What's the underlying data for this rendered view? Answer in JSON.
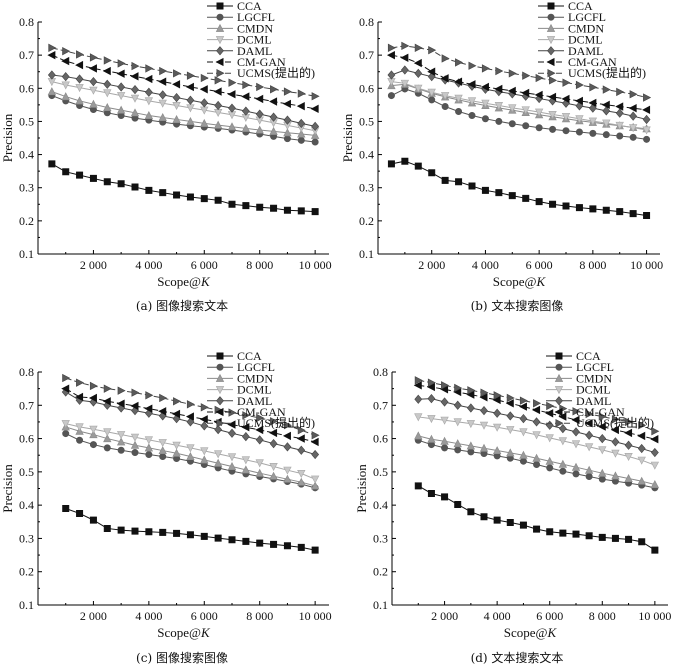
{
  "figure": {
    "captions": [
      "(a) 图像搜索文本",
      "(b) 文本搜索图像",
      "(c) 图像搜索图像",
      "(d) 文本搜索文本"
    ]
  },
  "chart_data": [
    {
      "type": "line",
      "title": "",
      "caption": "(a) 图像搜索文本",
      "xlabel_main": "Scope@",
      "xlabel_italic": "K",
      "ylabel": "Precision",
      "xlim": [
        0,
        10500
      ],
      "ylim": [
        0.1,
        0.8
      ],
      "xticks": [
        2000,
        4000,
        6000,
        8000,
        10000
      ],
      "xtick_labels": [
        "2 000",
        "4 000",
        "6 000",
        "8 000",
        "10 000"
      ],
      "yticks": [
        0.1,
        0.2,
        0.3,
        0.4,
        0.5,
        0.6,
        0.7,
        0.8
      ],
      "ytick_labels": [
        "0.1",
        "0.2",
        "0.3",
        "0.4",
        "0.5",
        "0.6",
        "0.7",
        "0.8"
      ],
      "legend_position": "top-right",
      "x": [
        500,
        1000,
        1500,
        2000,
        2500,
        3000,
        3500,
        4000,
        4500,
        5000,
        5500,
        6000,
        6500,
        7000,
        7500,
        8000,
        8500,
        9000,
        9500,
        10000
      ],
      "series": [
        {
          "name": "CCA",
          "marker": "square",
          "values": [
            0.372,
            0.348,
            0.338,
            0.328,
            0.318,
            0.312,
            0.302,
            0.292,
            0.285,
            0.278,
            0.272,
            0.267,
            0.262,
            0.25,
            0.246,
            0.241,
            0.238,
            0.232,
            0.23,
            0.228
          ]
        },
        {
          "name": "LGCFL",
          "marker": "circle",
          "values": [
            0.578,
            0.562,
            0.548,
            0.536,
            0.526,
            0.518,
            0.51,
            0.504,
            0.498,
            0.492,
            0.487,
            0.483,
            0.479,
            0.474,
            0.468,
            0.462,
            0.455,
            0.448,
            0.443,
            0.438
          ]
        },
        {
          "name": "CMDN",
          "marker": "triangle-up",
          "values": [
            0.59,
            0.575,
            0.562,
            0.552,
            0.542,
            0.534,
            0.526,
            0.518,
            0.512,
            0.506,
            0.5,
            0.494,
            0.489,
            0.484,
            0.479,
            0.474,
            0.47,
            0.466,
            0.462,
            0.458
          ]
        },
        {
          "name": "DCML",
          "marker": "triangle-down",
          "values": [
            0.62,
            0.61,
            0.602,
            0.594,
            0.586,
            0.578,
            0.57,
            0.562,
            0.555,
            0.548,
            0.541,
            0.534,
            0.527,
            0.52,
            0.512,
            0.504,
            0.496,
            0.488,
            0.48,
            0.472
          ]
        },
        {
          "name": "DAML",
          "marker": "diamond",
          "values": [
            0.64,
            0.635,
            0.628,
            0.62,
            0.612,
            0.604,
            0.596,
            0.588,
            0.58,
            0.572,
            0.564,
            0.556,
            0.548,
            0.54,
            0.531,
            0.522,
            0.513,
            0.504,
            0.494,
            0.485
          ]
        },
        {
          "name": "CM-GAN",
          "marker": "triangle-left",
          "values": [
            0.7,
            0.682,
            0.67,
            0.66,
            0.652,
            0.644,
            0.636,
            0.628,
            0.62,
            0.612,
            0.604,
            0.597,
            0.59,
            0.582,
            0.575,
            0.568,
            0.56,
            0.553,
            0.546,
            0.538
          ]
        },
        {
          "name": "UCMS(提出的)",
          "marker": "triangle-right",
          "values": [
            0.722,
            0.712,
            0.702,
            0.693,
            0.684,
            0.675,
            0.667,
            0.66,
            0.652,
            0.645,
            0.638,
            0.631,
            0.624,
            0.617,
            0.61,
            0.604,
            0.597,
            0.59,
            0.584,
            0.576
          ]
        }
      ]
    },
    {
      "type": "line",
      "title": "",
      "caption": "(b) 文本搜索图像",
      "xlabel_main": "Scope@",
      "xlabel_italic": "K",
      "ylabel": "Precision",
      "xlim": [
        0,
        10500
      ],
      "ylim": [
        0.1,
        0.8
      ],
      "xticks": [
        2000,
        4000,
        6000,
        8000,
        10000
      ],
      "xtick_labels": [
        "2 000",
        "4 000",
        "6 000",
        "8 000",
        "10 000"
      ],
      "yticks": [
        0.1,
        0.2,
        0.3,
        0.4,
        0.5,
        0.6,
        0.7,
        0.8
      ],
      "ytick_labels": [
        "0.1",
        "0.2",
        "0.3",
        "0.4",
        "0.5",
        "0.6",
        "0.7",
        "0.8"
      ],
      "legend_position": "top-right",
      "x": [
        500,
        1000,
        1500,
        2000,
        2500,
        3000,
        3500,
        4000,
        4500,
        5000,
        5500,
        6000,
        6500,
        7000,
        7500,
        8000,
        8500,
        9000,
        9500,
        10000
      ],
      "series": [
        {
          "name": "CCA",
          "marker": "square",
          "values": [
            0.372,
            0.38,
            0.365,
            0.345,
            0.322,
            0.318,
            0.305,
            0.292,
            0.285,
            0.276,
            0.268,
            0.258,
            0.25,
            0.245,
            0.24,
            0.236,
            0.232,
            0.228,
            0.222,
            0.216
          ]
        },
        {
          "name": "LGCFL",
          "marker": "circle",
          "values": [
            0.578,
            0.598,
            0.585,
            0.565,
            0.545,
            0.53,
            0.518,
            0.508,
            0.5,
            0.493,
            0.487,
            0.481,
            0.476,
            0.472,
            0.468,
            0.464,
            0.46,
            0.456,
            0.452,
            0.446
          ]
        },
        {
          "name": "CMDN",
          "marker": "triangle-up",
          "values": [
            0.608,
            0.612,
            0.598,
            0.585,
            0.574,
            0.565,
            0.556,
            0.548,
            0.541,
            0.534,
            0.527,
            0.52,
            0.514,
            0.508,
            0.502,
            0.497,
            0.492,
            0.487,
            0.482,
            0.478
          ]
        },
        {
          "name": "DCML",
          "marker": "triangle-down",
          "values": [
            0.62,
            0.615,
            0.6,
            0.588,
            0.578,
            0.57,
            0.562,
            0.555,
            0.548,
            0.541,
            0.535,
            0.528,
            0.521,
            0.515,
            0.508,
            0.501,
            0.495,
            0.488,
            0.481,
            0.474
          ]
        },
        {
          "name": "DAML",
          "marker": "diamond",
          "values": [
            0.64,
            0.655,
            0.645,
            0.635,
            0.625,
            0.616,
            0.606,
            0.597,
            0.59,
            0.583,
            0.576,
            0.569,
            0.562,
            0.555,
            0.547,
            0.54,
            0.532,
            0.525,
            0.516,
            0.506
          ]
        },
        {
          "name": "CM-GAN",
          "marker": "triangle-left",
          "values": [
            0.7,
            0.692,
            0.676,
            0.65,
            0.63,
            0.62,
            0.612,
            0.604,
            0.598,
            0.592,
            0.586,
            0.58,
            0.574,
            0.568,
            0.562,
            0.556,
            0.55,
            0.545,
            0.54,
            0.535
          ]
        },
        {
          "name": "UCMS(提出的)",
          "marker": "triangle-right",
          "values": [
            0.722,
            0.728,
            0.722,
            0.715,
            0.69,
            0.678,
            0.668,
            0.66,
            0.652,
            0.645,
            0.638,
            0.631,
            0.624,
            0.617,
            0.61,
            0.603,
            0.596,
            0.589,
            0.582,
            0.572
          ]
        }
      ]
    },
    {
      "type": "line",
      "title": "",
      "caption": "(c) 图像搜索图像",
      "xlabel_main": "Scope@",
      "xlabel_italic": "K",
      "ylabel": "Precision",
      "xlim": [
        0,
        10500
      ],
      "ylim": [
        0.1,
        0.8
      ],
      "xticks": [
        2000,
        4000,
        6000,
        8000,
        10000
      ],
      "xtick_labels": [
        "2 000",
        "4 000",
        "6 000",
        "8 000",
        "10 000"
      ],
      "yticks": [
        0.1,
        0.2,
        0.3,
        0.4,
        0.5,
        0.6,
        0.7,
        0.8
      ],
      "ytick_labels": [
        "0.1",
        "0.2",
        "0.3",
        "0.4",
        "0.5",
        "0.6",
        "0.7",
        "0.8"
      ],
      "legend_position": "top-right",
      "x": [
        1000,
        1500,
        2000,
        2500,
        3000,
        3500,
        4000,
        4500,
        5000,
        5500,
        6000,
        6500,
        7000,
        7500,
        8000,
        8500,
        9000,
        9500,
        10000
      ],
      "series": [
        {
          "name": "CCA",
          "marker": "square",
          "values": [
            0.39,
            0.375,
            0.355,
            0.33,
            0.325,
            0.322,
            0.32,
            0.318,
            0.315,
            0.311,
            0.306,
            0.301,
            0.296,
            0.291,
            0.286,
            0.282,
            0.278,
            0.273,
            0.265
          ]
        },
        {
          "name": "LGCFL",
          "marker": "circle",
          "values": [
            0.615,
            0.595,
            0.582,
            0.572,
            0.565,
            0.558,
            0.552,
            0.546,
            0.54,
            0.532,
            0.522,
            0.512,
            0.502,
            0.494,
            0.486,
            0.479,
            0.471,
            0.463,
            0.452
          ]
        },
        {
          "name": "CMDN",
          "marker": "triangle-up",
          "values": [
            0.635,
            0.622,
            0.612,
            0.6,
            0.59,
            0.58,
            0.572,
            0.564,
            0.556,
            0.546,
            0.536,
            0.526,
            0.516,
            0.506,
            0.496,
            0.487,
            0.478,
            0.469,
            0.458
          ]
        },
        {
          "name": "DCML",
          "marker": "triangle-down",
          "values": [
            0.645,
            0.635,
            0.628,
            0.62,
            0.612,
            0.604,
            0.596,
            0.588,
            0.58,
            0.572,
            0.563,
            0.554,
            0.545,
            0.536,
            0.527,
            0.516,
            0.505,
            0.495,
            0.478
          ]
        },
        {
          "name": "DAML",
          "marker": "diamond",
          "values": [
            0.74,
            0.715,
            0.71,
            0.7,
            0.692,
            0.684,
            0.676,
            0.668,
            0.66,
            0.65,
            0.638,
            0.627,
            0.616,
            0.606,
            0.596,
            0.585,
            0.575,
            0.565,
            0.552
          ]
        },
        {
          "name": "CM-GAN",
          "marker": "triangle-left",
          "values": [
            0.75,
            0.725,
            0.722,
            0.712,
            0.705,
            0.698,
            0.69,
            0.682,
            0.674,
            0.666,
            0.658,
            0.65,
            0.642,
            0.634,
            0.626,
            0.617,
            0.608,
            0.6,
            0.59
          ]
        },
        {
          "name": "UCMS(提出的)",
          "marker": "triangle-right",
          "values": [
            0.782,
            0.768,
            0.758,
            0.75,
            0.744,
            0.738,
            0.73,
            0.722,
            0.712,
            0.703,
            0.694,
            0.686,
            0.678,
            0.67,
            0.662,
            0.652,
            0.64,
            0.625,
            0.61
          ]
        }
      ]
    },
    {
      "type": "line",
      "title": "",
      "caption": "(d) 文本搜索文本",
      "xlabel_main": "Scope@",
      "xlabel_italic": "K",
      "ylabel": "Precision",
      "xlim": [
        0,
        10500
      ],
      "ylim": [
        0.1,
        0.8
      ],
      "xticks": [
        2000,
        4000,
        6000,
        8000,
        10000
      ],
      "xtick_labels": [
        "2 000",
        "4 000",
        "6 000",
        "8 000",
        "10 000"
      ],
      "yticks": [
        0.1,
        0.2,
        0.3,
        0.4,
        0.5,
        0.6,
        0.7,
        0.8
      ],
      "ytick_labels": [
        "0.1",
        "0.2",
        "0.3",
        "0.4",
        "0.5",
        "0.6",
        "0.7",
        "0.8"
      ],
      "legend_position": "top-right",
      "x": [
        1000,
        1500,
        2000,
        2500,
        3000,
        3500,
        4000,
        4500,
        5000,
        5500,
        6000,
        6500,
        7000,
        7500,
        8000,
        8500,
        9000,
        9500,
        10000
      ],
      "series": [
        {
          "name": "CCA",
          "marker": "square",
          "values": [
            0.458,
            0.435,
            0.425,
            0.402,
            0.38,
            0.365,
            0.355,
            0.348,
            0.34,
            0.328,
            0.32,
            0.316,
            0.313,
            0.308,
            0.303,
            0.3,
            0.297,
            0.29,
            0.265
          ]
        },
        {
          "name": "LGCFL",
          "marker": "circle",
          "values": [
            0.595,
            0.582,
            0.572,
            0.566,
            0.56,
            0.555,
            0.548,
            0.541,
            0.532,
            0.522,
            0.512,
            0.502,
            0.494,
            0.486,
            0.478,
            0.472,
            0.466,
            0.46,
            0.452
          ]
        },
        {
          "name": "CMDN",
          "marker": "triangle-up",
          "values": [
            0.608,
            0.598,
            0.592,
            0.585,
            0.578,
            0.571,
            0.564,
            0.557,
            0.55,
            0.541,
            0.532,
            0.523,
            0.514,
            0.505,
            0.496,
            0.488,
            0.48,
            0.472,
            0.462
          ]
        },
        {
          "name": "DCML",
          "marker": "triangle-down",
          "values": [
            0.665,
            0.66,
            0.655,
            0.65,
            0.645,
            0.64,
            0.634,
            0.627,
            0.62,
            0.611,
            0.602,
            0.593,
            0.584,
            0.575,
            0.566,
            0.556,
            0.546,
            0.535,
            0.52
          ]
        },
        {
          "name": "DAML",
          "marker": "diamond",
          "values": [
            0.718,
            0.72,
            0.71,
            0.7,
            0.692,
            0.684,
            0.676,
            0.668,
            0.66,
            0.65,
            0.64,
            0.63,
            0.62,
            0.61,
            0.6,
            0.59,
            0.58,
            0.57,
            0.558
          ]
        },
        {
          "name": "CM-GAN",
          "marker": "triangle-left",
          "values": [
            0.76,
            0.755,
            0.748,
            0.74,
            0.732,
            0.724,
            0.716,
            0.706,
            0.696,
            0.686,
            0.676,
            0.666,
            0.656,
            0.646,
            0.636,
            0.626,
            0.617,
            0.608,
            0.598
          ]
        },
        {
          "name": "UCMS(提出的)",
          "marker": "triangle-right",
          "values": [
            0.775,
            0.768,
            0.76,
            0.752,
            0.745,
            0.738,
            0.73,
            0.722,
            0.714,
            0.706,
            0.698,
            0.69,
            0.682,
            0.674,
            0.666,
            0.658,
            0.65,
            0.64,
            0.622
          ]
        }
      ]
    }
  ]
}
